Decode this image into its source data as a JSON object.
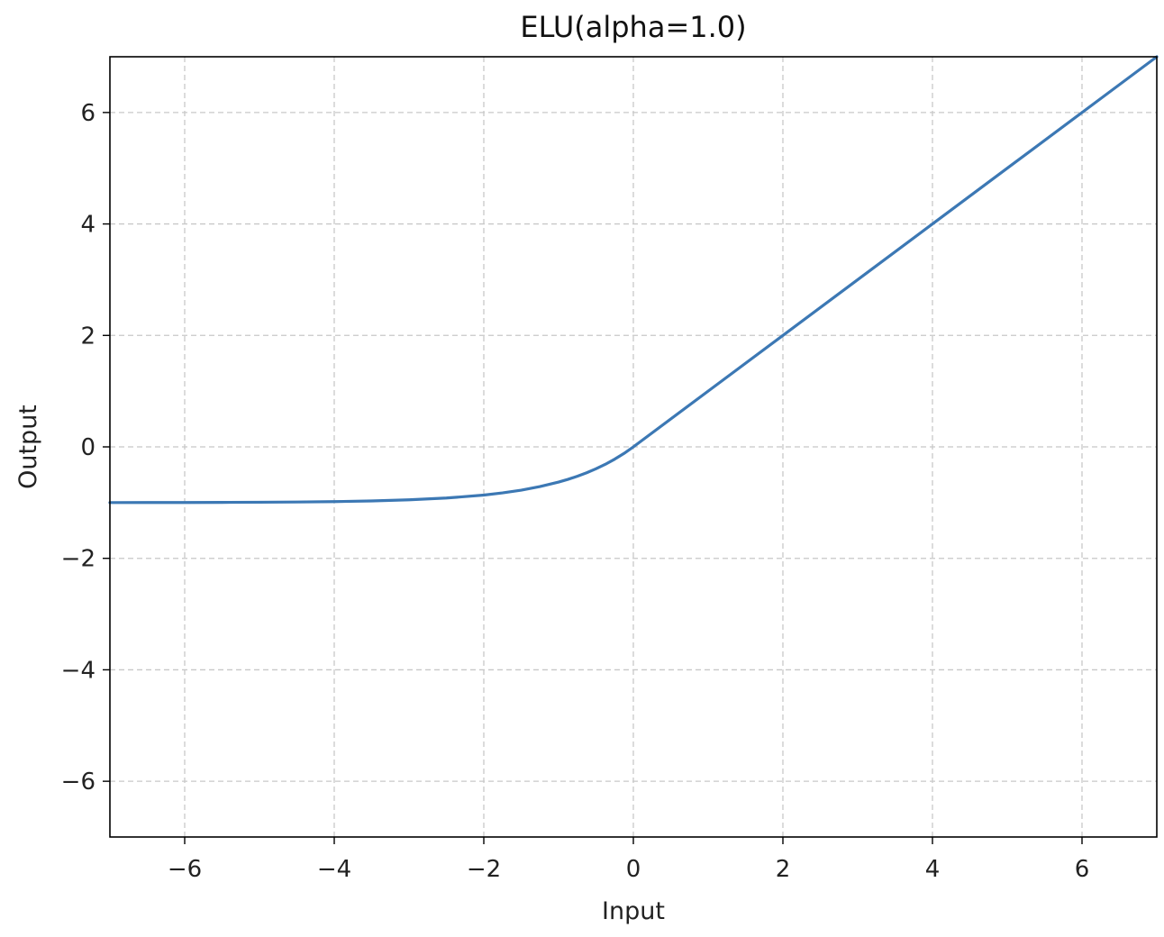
{
  "chart_data": {
    "type": "line",
    "title": "ELU(alpha=1.0)",
    "xlabel": "Input",
    "ylabel": "Output",
    "xlim": [
      -7,
      7
    ],
    "ylim": [
      -7,
      7
    ],
    "xticks": [
      -6,
      -4,
      -2,
      0,
      2,
      4,
      6
    ],
    "yticks": [
      -6,
      -4,
      -2,
      0,
      2,
      4,
      6
    ],
    "xtick_labels": [
      "−6",
      "−4",
      "−2",
      "0",
      "2",
      "4",
      "6"
    ],
    "ytick_labels": [
      "−6",
      "−4",
      "−2",
      "0",
      "2",
      "4",
      "6"
    ],
    "grid": true,
    "grid_style": "dashed",
    "series": [
      {
        "color": "#3c78b4",
        "x": [
          -7,
          -6.5,
          -6,
          -5.5,
          -5,
          -4.5,
          -4,
          -3.5,
          -3,
          -2.5,
          -2,
          -1.75,
          -1.5,
          -1.25,
          -1,
          -0.875,
          -0.75,
          -0.625,
          -0.5,
          -0.375,
          -0.25,
          -0.125,
          0,
          1,
          2,
          3,
          4,
          5,
          6,
          7
        ],
        "y": [
          -0.999,
          -0.998,
          -0.998,
          -0.996,
          -0.993,
          -0.989,
          -0.982,
          -0.97,
          -0.95,
          -0.918,
          -0.865,
          -0.826,
          -0.777,
          -0.713,
          -0.632,
          -0.583,
          -0.528,
          -0.465,
          -0.393,
          -0.313,
          -0.221,
          -0.118,
          0,
          1,
          2,
          3,
          4,
          5,
          6,
          7
        ]
      }
    ]
  }
}
